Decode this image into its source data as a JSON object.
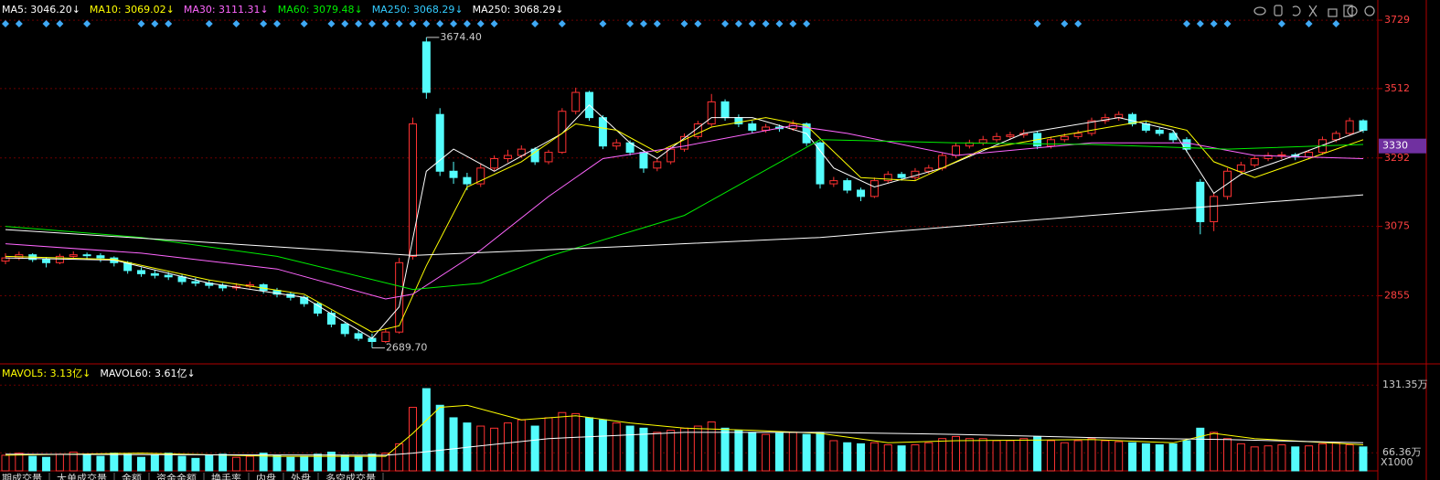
{
  "chart_data": {
    "type": "candlestick",
    "legend": [
      {
        "label": "MA5: 3046.20↓",
        "color": "#ffffff"
      },
      {
        "label": "MA10: 3069.02↓",
        "color": "#ffff00"
      },
      {
        "label": "MA30: 3111.31↓",
        "color": "#ff66ff"
      },
      {
        "label": "MA60: 3079.48↓",
        "color": "#00ee00"
      },
      {
        "label": "MA250: 3068.29↓",
        "color": "#33ccff"
      },
      {
        "label": "MA250: 3068.29↓",
        "color": "#ffffff"
      }
    ],
    "ylim": [
      2639,
      3793
    ],
    "yticks": [
      2855,
      3075,
      3292,
      3512,
      3729
    ],
    "current_price": 3330,
    "annotations": [
      {
        "label": "3674.40",
        "value": 3674.4
      },
      {
        "label": "2689.70",
        "value": 2689.7
      }
    ],
    "ohlc": [
      [
        2965,
        2990,
        2955,
        2975
      ],
      [
        2975,
        2995,
        2968,
        2985
      ],
      [
        2985,
        2990,
        2962,
        2970
      ],
      [
        2970,
        2978,
        2945,
        2960
      ],
      [
        2960,
        2988,
        2955,
        2980
      ],
      [
        2980,
        2996,
        2972,
        2985
      ],
      [
        2985,
        2992,
        2970,
        2982
      ],
      [
        2982,
        2990,
        2962,
        2975
      ],
      [
        2975,
        2980,
        2948,
        2960
      ],
      [
        2960,
        2965,
        2925,
        2935
      ],
      [
        2935,
        2945,
        2915,
        2925
      ],
      [
        2925,
        2938,
        2910,
        2920
      ],
      [
        2920,
        2930,
        2905,
        2915
      ],
      [
        2915,
        2922,
        2890,
        2900
      ],
      [
        2900,
        2912,
        2885,
        2895
      ],
      [
        2895,
        2905,
        2878,
        2888
      ],
      [
        2888,
        2895,
        2870,
        2880
      ],
      [
        2880,
        2895,
        2872,
        2885
      ],
      [
        2885,
        2900,
        2878,
        2890
      ],
      [
        2890,
        2895,
        2862,
        2872
      ],
      [
        2872,
        2880,
        2850,
        2860
      ],
      [
        2860,
        2868,
        2840,
        2850
      ],
      [
        2850,
        2856,
        2820,
        2830
      ],
      [
        2830,
        2835,
        2790,
        2800
      ],
      [
        2800,
        2808,
        2755,
        2765
      ],
      [
        2765,
        2772,
        2725,
        2735
      ],
      [
        2735,
        2745,
        2712,
        2720
      ],
      [
        2720,
        2735,
        2689.7,
        2710
      ],
      [
        2710,
        2752,
        2705,
        2740
      ],
      [
        2740,
        2975,
        2735,
        2960
      ],
      [
        2980,
        3420,
        2970,
        3400
      ],
      [
        3660,
        3674.4,
        3480,
        3500
      ],
      [
        3430,
        3450,
        3235,
        3250
      ],
      [
        3250,
        3280,
        3210,
        3230
      ],
      [
        3230,
        3245,
        3190,
        3210
      ],
      [
        3210,
        3275,
        3200,
        3260
      ],
      [
        3260,
        3300,
        3250,
        3290
      ],
      [
        3290,
        3318,
        3278,
        3300
      ],
      [
        3300,
        3332,
        3292,
        3320
      ],
      [
        3320,
        3326,
        3270,
        3280
      ],
      [
        3280,
        3318,
        3272,
        3310
      ],
      [
        3310,
        3450,
        3305,
        3440
      ],
      [
        3440,
        3515,
        3430,
        3500
      ],
      [
        3500,
        3505,
        3410,
        3420
      ],
      [
        3420,
        3428,
        3320,
        3330
      ],
      [
        3330,
        3352,
        3318,
        3340
      ],
      [
        3340,
        3348,
        3300,
        3310
      ],
      [
        3310,
        3318,
        3245,
        3260
      ],
      [
        3260,
        3292,
        3250,
        3280
      ],
      [
        3280,
        3330,
        3272,
        3320
      ],
      [
        3320,
        3370,
        3312,
        3360
      ],
      [
        3360,
        3410,
        3352,
        3400
      ],
      [
        3400,
        3495,
        3392,
        3470
      ],
      [
        3470,
        3478,
        3410,
        3420
      ],
      [
        3420,
        3430,
        3390,
        3400
      ],
      [
        3400,
        3410,
        3370,
        3380
      ],
      [
        3380,
        3400,
        3372,
        3390
      ],
      [
        3390,
        3398,
        3375,
        3385
      ],
      [
        3385,
        3412,
        3378,
        3400
      ],
      [
        3400,
        3405,
        3330,
        3340
      ],
      [
        3340,
        3345,
        3195,
        3210
      ],
      [
        3210,
        3232,
        3200,
        3220
      ],
      [
        3220,
        3228,
        3180,
        3190
      ],
      [
        3190,
        3198,
        3155,
        3170
      ],
      [
        3170,
        3230,
        3165,
        3220
      ],
      [
        3220,
        3250,
        3212,
        3240
      ],
      [
        3240,
        3248,
        3220,
        3230
      ],
      [
        3230,
        3260,
        3222,
        3250
      ],
      [
        3250,
        3270,
        3242,
        3260
      ],
      [
        3260,
        3310,
        3252,
        3300
      ],
      [
        3300,
        3340,
        3292,
        3330
      ],
      [
        3330,
        3350,
        3322,
        3340
      ],
      [
        3340,
        3362,
        3332,
        3350
      ],
      [
        3350,
        3372,
        3342,
        3360
      ],
      [
        3360,
        3375,
        3350,
        3365
      ],
      [
        3365,
        3382,
        3356,
        3370
      ],
      [
        3370,
        3376,
        3320,
        3330
      ],
      [
        3330,
        3360,
        3322,
        3350
      ],
      [
        3350,
        3370,
        3342,
        3360
      ],
      [
        3360,
        3380,
        3352,
        3370
      ],
      [
        3370,
        3420,
        3362,
        3410
      ],
      [
        3410,
        3432,
        3400,
        3420
      ],
      [
        3420,
        3440,
        3410,
        3430
      ],
      [
        3430,
        3436,
        3392,
        3400
      ],
      [
        3400,
        3408,
        3372,
        3380
      ],
      [
        3380,
        3388,
        3362,
        3370
      ],
      [
        3370,
        3378,
        3340,
        3350
      ],
      [
        3350,
        3358,
        3310,
        3320
      ],
      [
        3215,
        3225,
        3050,
        3090
      ],
      [
        3090,
        3180,
        3060,
        3170
      ],
      [
        3170,
        3260,
        3160,
        3250
      ],
      [
        3250,
        3280,
        3242,
        3270
      ],
      [
        3270,
        3298,
        3262,
        3290
      ],
      [
        3290,
        3310,
        3282,
        3300
      ],
      [
        3300,
        3312,
        3288,
        3302
      ],
      [
        3302,
        3308,
        3285,
        3295
      ],
      [
        3295,
        3318,
        3288,
        3310
      ],
      [
        3310,
        3360,
        3302,
        3350
      ],
      [
        3350,
        3378,
        3342,
        3370
      ],
      [
        3370,
        3420,
        3362,
        3410
      ],
      [
        3410,
        3415,
        3372,
        3380
      ]
    ],
    "ma_lines": [
      {
        "color": "#ffffff",
        "x": [
          0,
          8,
          15,
          22,
          27,
          29,
          31,
          33,
          36,
          41,
          43,
          46,
          48,
          52,
          55,
          59,
          61,
          64,
          69,
          75,
          82,
          86,
          89,
          91,
          95,
          100
        ],
        "values": [
          2975,
          2968,
          2895,
          2850,
          2720,
          2820,
          3250,
          3320,
          3250,
          3370,
          3460,
          3340,
          3290,
          3420,
          3420,
          3370,
          3260,
          3200,
          3260,
          3370,
          3420,
          3380,
          3180,
          3240,
          3300,
          3380
        ]
      },
      {
        "color": "#ffff00",
        "x": [
          0,
          8,
          15,
          22,
          27,
          29,
          31,
          34,
          38,
          42,
          45,
          48,
          52,
          56,
          59,
          63,
          67,
          72,
          80,
          84,
          87,
          89,
          92,
          96,
          100
        ],
        "values": [
          2980,
          2970,
          2905,
          2860,
          2740,
          2760,
          2950,
          3200,
          3280,
          3400,
          3380,
          3310,
          3390,
          3420,
          3395,
          3230,
          3220,
          3320,
          3380,
          3410,
          3380,
          3280,
          3230,
          3290,
          3350
        ]
      },
      {
        "color": "#ff66ff",
        "x": [
          0,
          10,
          20,
          28,
          30,
          35,
          40,
          44,
          50,
          58,
          62,
          70,
          80,
          87,
          92,
          100
        ],
        "values": [
          3020,
          2990,
          2940,
          2845,
          2860,
          3000,
          3170,
          3290,
          3330,
          3395,
          3370,
          3300,
          3340,
          3340,
          3300,
          3290
        ]
      },
      {
        "color": "#00ee00",
        "x": [
          0,
          10,
          20,
          30,
          35,
          40,
          50,
          60,
          70,
          80,
          90,
          100
        ],
        "values": [
          3075,
          3040,
          2980,
          2875,
          2895,
          2980,
          3110,
          3350,
          3340,
          3335,
          3320,
          3335
        ]
      },
      {
        "color": "#ffffff",
        "x": [
          0,
          30,
          45,
          60,
          80,
          100
        ],
        "values": [
          3065,
          2983,
          3010,
          3040,
          3110,
          3175
        ]
      }
    ],
    "signals": [
      0,
      1,
      3,
      4,
      6,
      10,
      11,
      12,
      15,
      17,
      19,
      20,
      22,
      24,
      25,
      26,
      27,
      28,
      29,
      30,
      31,
      32,
      33,
      34,
      35,
      36,
      39,
      41,
      44,
      46,
      47,
      48,
      50,
      51,
      53,
      54,
      55,
      56,
      57,
      58,
      59,
      76,
      78,
      79,
      87,
      88,
      89,
      90,
      94,
      96,
      98
    ],
    "volume": {
      "legend": [
        {
          "label": "MAVOL5: 3.13亿↓",
          "color": "#ffff00"
        },
        {
          "label": "MAVOL60: 3.61亿↓",
          "color": "#ffffff"
        }
      ],
      "ylim": [
        49,
        150
      ],
      "yticks": [
        {
          "value": 131.35,
          "label": "131.35万"
        },
        {
          "value": 66.36,
          "label": "66.36万"
        }
      ],
      "unit_label": "X1000",
      "values": [
        64,
        66,
        63,
        62,
        65,
        67,
        64,
        63,
        66,
        65,
        62,
        64,
        66,
        63,
        61,
        64,
        65,
        62,
        63,
        66,
        64,
        62,
        63,
        65,
        67,
        64,
        63,
        65,
        66,
        75,
        110,
        128,
        112,
        100,
        95,
        92,
        90,
        95,
        98,
        92,
        100,
        105,
        104,
        100,
        98,
        95,
        92,
        90,
        86,
        88,
        90,
        92,
        96,
        90,
        88,
        86,
        84,
        85,
        86,
        84,
        86,
        78,
        76,
        75,
        76,
        74,
        73,
        74,
        76,
        80,
        82,
        80,
        80,
        78,
        78,
        80,
        82,
        78,
        76,
        78,
        80,
        78,
        77,
        76,
        75,
        74,
        75,
        78,
        90,
        86,
        80,
        75,
        72,
        73,
        74,
        72,
        73,
        75,
        76,
        74,
        72
      ],
      "ma_lines": [
        {
          "color": "#ffff00",
          "x": [
            0,
            10,
            20,
            28,
            30,
            32,
            34,
            38,
            42,
            46,
            50,
            55,
            60,
            65,
            70,
            80,
            86,
            89,
            92,
            100
          ],
          "values": [
            64,
            66,
            63,
            63,
            85,
            110,
            112,
            98,
            102,
            95,
            90,
            88,
            85,
            76,
            78,
            79,
            76,
            85,
            80,
            74
          ]
        },
        {
          "color": "#ffffff",
          "x": [
            0,
            28,
            30,
            40,
            50,
            60,
            70,
            80,
            90,
            100
          ],
          "values": [
            65,
            64,
            66,
            80,
            86,
            86,
            84,
            81,
            79,
            76
          ]
        }
      ]
    },
    "tabs": [
      "期成交量",
      "大单成交量",
      "金额",
      "资金金额",
      "换手率",
      "内盘",
      "外盘",
      "多空成交量"
    ]
  }
}
